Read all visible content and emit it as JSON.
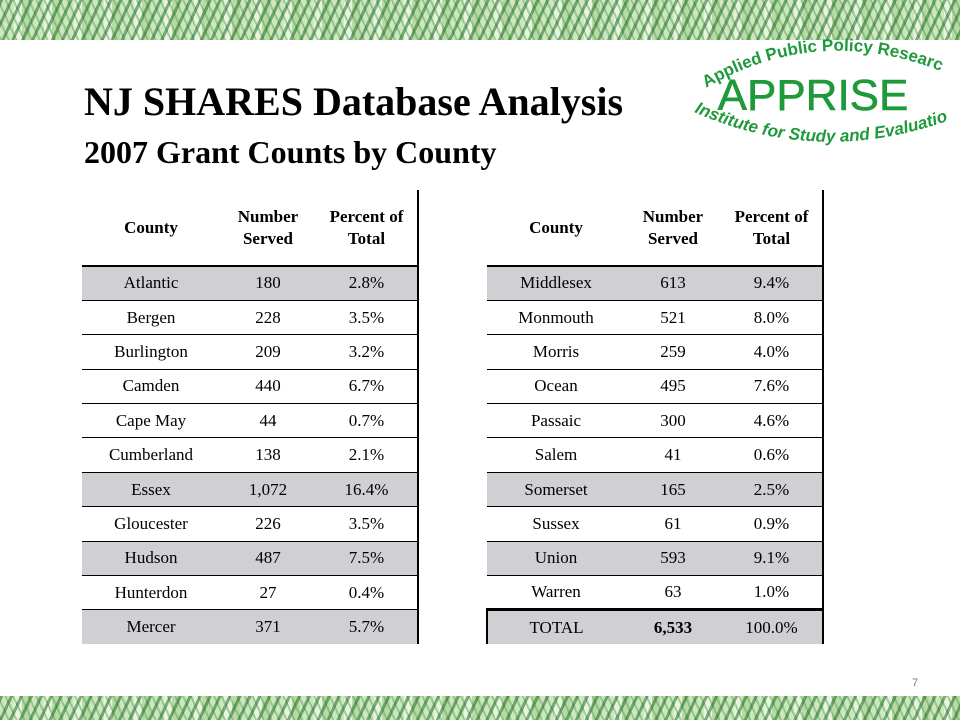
{
  "slide": {
    "title": "NJ SHARES Database Analysis",
    "subtitle": "2007 Grant Counts by County",
    "page_number": "7",
    "colors": {
      "logo_green": "#1f9a3a",
      "row_shade": "#cfcfd4"
    }
  },
  "logo": {
    "arc_top": "Applied Public Policy Research",
    "name": "APPRISE",
    "arc_bottom": "Institute for Study and Evaluation"
  },
  "table_headers": {
    "county": "County",
    "number_line1": "Number",
    "number_line2": "Served",
    "percent_line1": "Percent of",
    "percent_line2": "Total"
  },
  "left_table": [
    {
      "county": "Atlantic",
      "number": "180",
      "percent": "2.8%"
    },
    {
      "county": "Bergen",
      "number": "228",
      "percent": "3.5%"
    },
    {
      "county": "Burlington",
      "number": "209",
      "percent": "3.2%"
    },
    {
      "county": "Camden",
      "number": "440",
      "percent": "6.7%"
    },
    {
      "county": "Cape May",
      "number": "44",
      "percent": "0.7%"
    },
    {
      "county": "Cumberland",
      "number": "138",
      "percent": "2.1%"
    },
    {
      "county": "Essex",
      "number": "1,072",
      "percent": "16.4%"
    },
    {
      "county": "Gloucester",
      "number": "226",
      "percent": "3.5%"
    },
    {
      "county": "Hudson",
      "number": "487",
      "percent": "7.5%"
    },
    {
      "county": "Hunterdon",
      "number": "27",
      "percent": "0.4%"
    },
    {
      "county": "Mercer",
      "number": "371",
      "percent": "5.7%"
    }
  ],
  "right_table": [
    {
      "county": "Middlesex",
      "number": "613",
      "percent": "9.4%"
    },
    {
      "county": "Monmouth",
      "number": "521",
      "percent": "8.0%"
    },
    {
      "county": "Morris",
      "number": "259",
      "percent": "4.0%"
    },
    {
      "county": "Ocean",
      "number": "495",
      "percent": "7.6%"
    },
    {
      "county": "Passaic",
      "number": "300",
      "percent": "4.6%"
    },
    {
      "county": "Salem",
      "number": "41",
      "percent": "0.6%"
    },
    {
      "county": "Somerset",
      "number": "165",
      "percent": "2.5%"
    },
    {
      "county": "Sussex",
      "number": "61",
      "percent": "0.9%"
    },
    {
      "county": "Union",
      "number": "593",
      "percent": "9.1%"
    },
    {
      "county": "Warren",
      "number": "63",
      "percent": "1.0%"
    },
    {
      "county": "TOTAL",
      "number": "6,533",
      "percent": "100.0%"
    }
  ]
}
